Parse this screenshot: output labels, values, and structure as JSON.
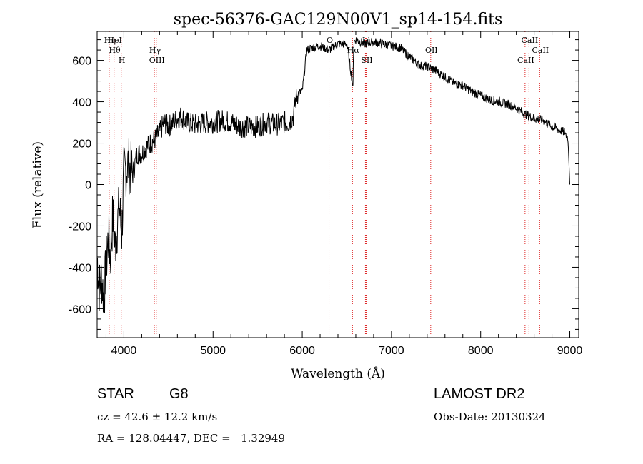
{
  "chart_data": {
    "type": "line",
    "title": "spec-56376-GAC129N00V1_sp14-154.fits",
    "xlabel": "Wavelength (Å)",
    "ylabel": "Flux (relative)",
    "xlim": [
      3700,
      9100
    ],
    "ylim": [
      -740,
      740
    ],
    "xticks": [
      4000,
      5000,
      6000,
      7000,
      8000,
      9000
    ],
    "yticks": [
      -600,
      -400,
      -200,
      0,
      200,
      400,
      600
    ],
    "grid": false,
    "line_color": "#000000",
    "marker_color": "#dd2222",
    "spectrum": {
      "x": [
        3700,
        3725,
        3750,
        3775,
        3800,
        3825,
        3850,
        3875,
        3900,
        3925,
        3950,
        3975,
        4000,
        4050,
        4100,
        4150,
        4200,
        4250,
        4300,
        4350,
        4400,
        4450,
        4500,
        4550,
        4600,
        4650,
        4700,
        4800,
        4900,
        5000,
        5100,
        5200,
        5300,
        5400,
        5500,
        5600,
        5700,
        5800,
        5850,
        5900,
        5920,
        5950,
        6000,
        6050,
        6100,
        6200,
        6300,
        6400,
        6500,
        6560,
        6580,
        6600,
        6700,
        6800,
        6900,
        7000,
        7100,
        7200,
        7300,
        7400,
        7500,
        7600,
        7700,
        7800,
        7900,
        8000,
        8100,
        8200,
        8300,
        8400,
        8500,
        8600,
        8700,
        8800,
        8850,
        8900,
        8950,
        8980,
        9000
      ],
      "y": [
        -350,
        -500,
        -450,
        -550,
        -400,
        -250,
        -350,
        -150,
        -300,
        -200,
        -100,
        -250,
        50,
        100,
        50,
        150,
        150,
        180,
        200,
        220,
        250,
        300,
        280,
        300,
        320,
        330,
        300,
        290,
        300,
        300,
        310,
        300,
        280,
        280,
        280,
        300,
        290,
        300,
        300,
        330,
        400,
        440,
        450,
        650,
        660,
        670,
        650,
        680,
        680,
        500,
        690,
        700,
        680,
        690,
        680,
        670,
        660,
        620,
        580,
        570,
        550,
        520,
        490,
        480,
        450,
        430,
        410,
        400,
        390,
        370,
        340,
        320,
        310,
        280,
        270,
        260,
        250,
        220,
        0
      ]
    },
    "lines": [
      {
        "x": 3835,
        "labels": [
          "Hη"
        ]
      },
      {
        "x": 3889,
        "labels": [
          "Hθ"
        ]
      },
      {
        "x": 3970,
        "labels": [
          "H"
        ]
      },
      {
        "x": 3889,
        "labels": [
          "HeI"
        ]
      },
      {
        "x": 4341,
        "labels": [
          "Hγ"
        ]
      },
      {
        "x": 4363,
        "labels": [
          "OIII"
        ]
      },
      {
        "x": 6300,
        "labels": [
          "O"
        ]
      },
      {
        "x": 6563,
        "labels": [
          "Hα"
        ]
      },
      {
        "x": 6716,
        "labels": [
          "SII"
        ]
      },
      {
        "x": 6708,
        "labels": [
          "Li"
        ]
      },
      {
        "x": 7440,
        "labels": [
          "OII"
        ]
      },
      {
        "x": 8498,
        "labels": [
          "CaII"
        ]
      },
      {
        "x": 8542,
        "labels": [
          "CaII"
        ]
      },
      {
        "x": 8662,
        "labels": [
          "CaII"
        ]
      }
    ]
  },
  "info": {
    "object_class": "STAR",
    "subclass": "G8",
    "survey": "LAMOST DR2",
    "redshift": "cz = 42.6 ± 12.2 km/s",
    "obs_date": "Obs-Date: 20130324",
    "coords": "RA = 128.04447, DEC =   1.32949"
  }
}
